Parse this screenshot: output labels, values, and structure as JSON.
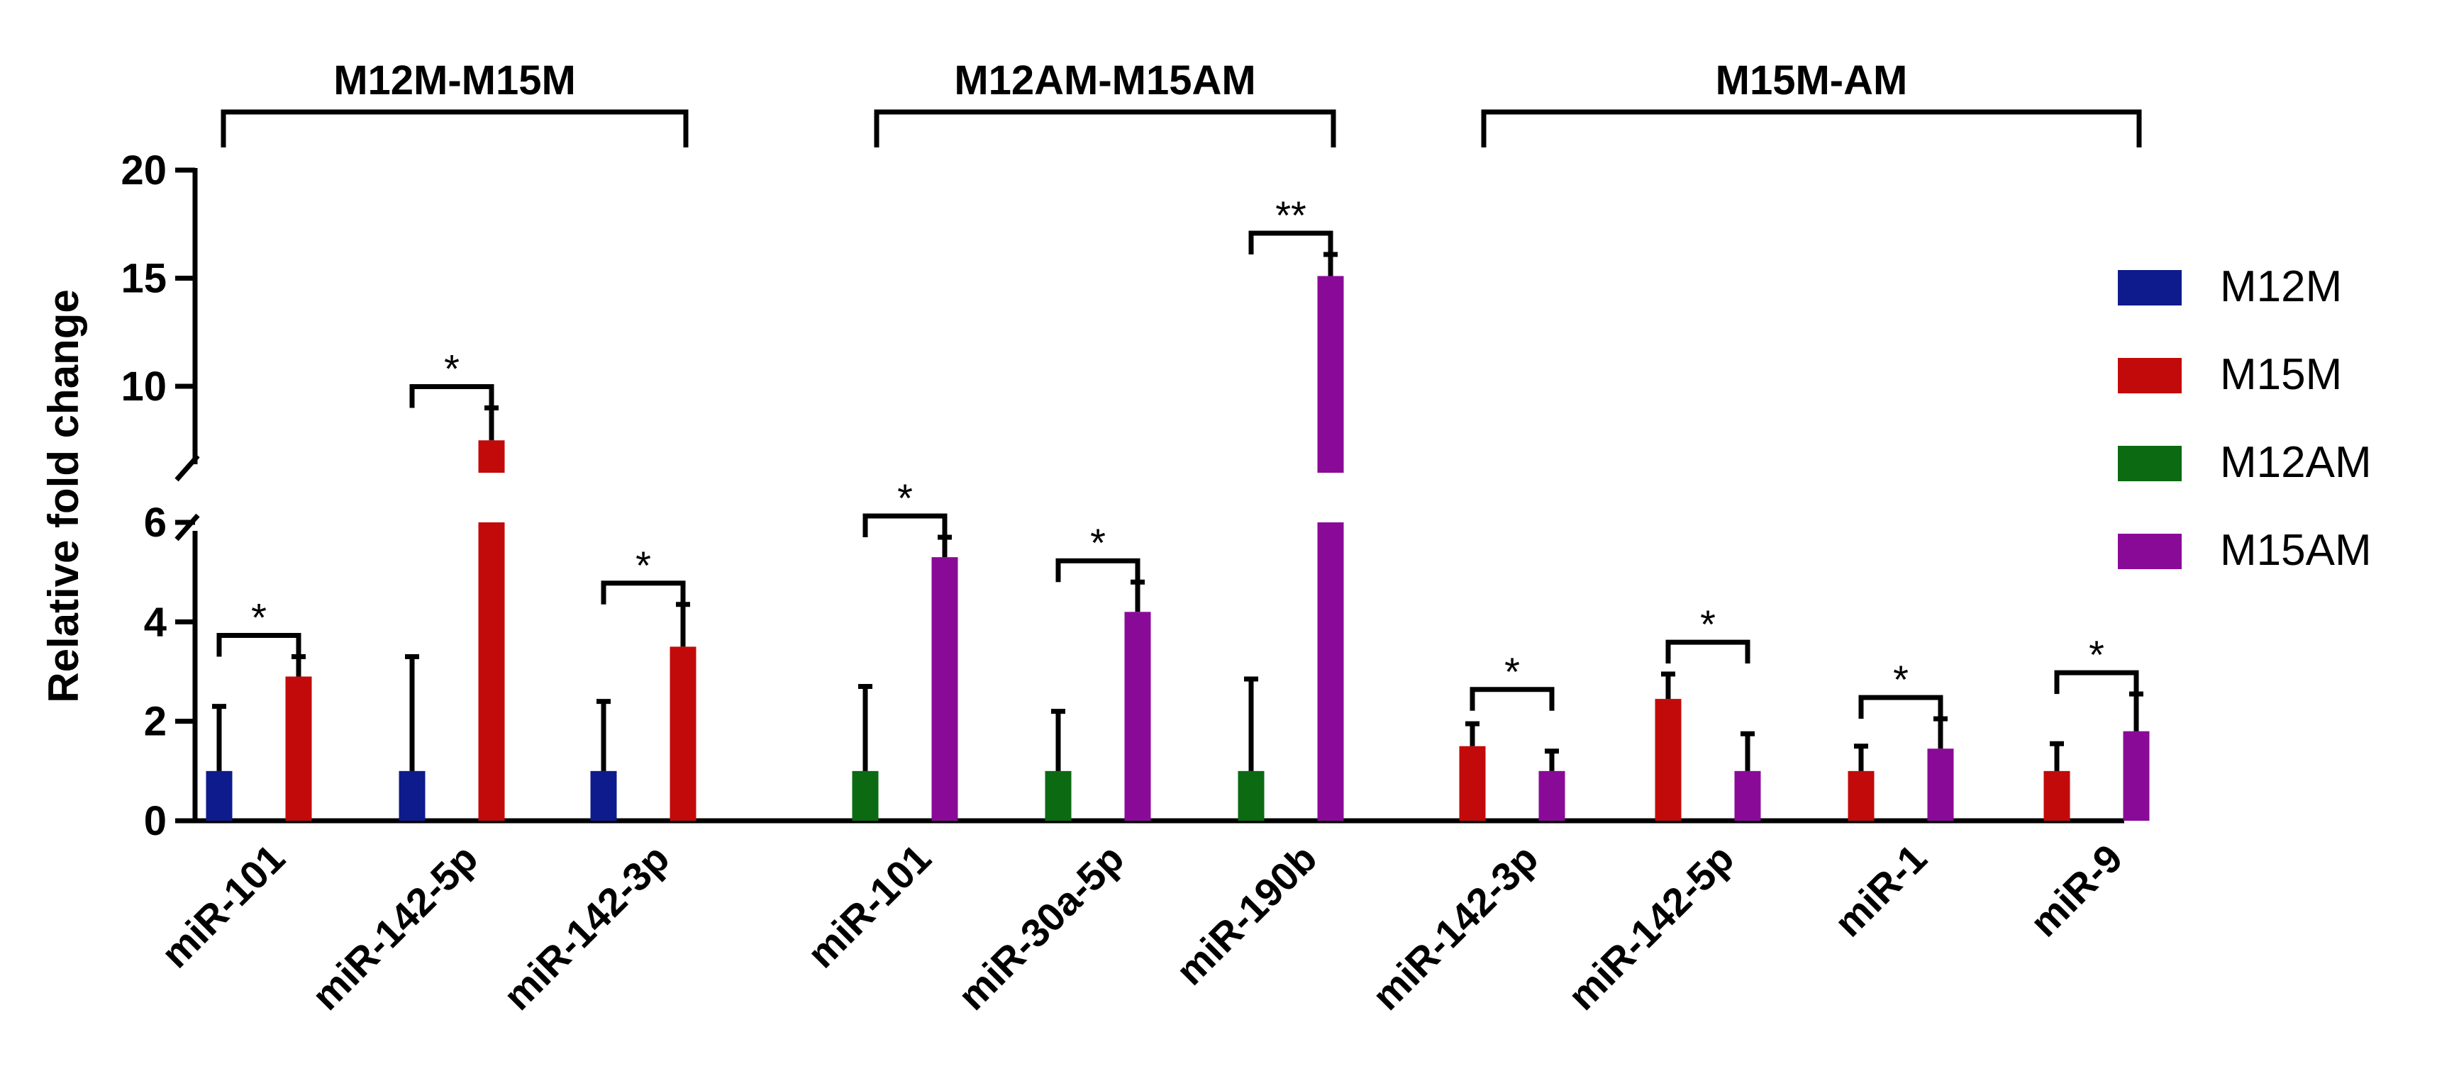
{
  "chart_data": {
    "type": "bar",
    "ylabel": "Relative fold change",
    "y_axis": {
      "lower_segment": {
        "range": [
          0,
          6
        ],
        "ticks": [
          0,
          2,
          4,
          6
        ]
      },
      "upper_segment": {
        "range": [
          6,
          20
        ],
        "ticks": [
          10,
          15,
          20
        ]
      },
      "break": true
    },
    "series_legend": [
      {
        "name": "M12M",
        "color": "#0d1b8c"
      },
      {
        "name": "M15M",
        "color": "#c30a0a"
      },
      {
        "name": "M12AM",
        "color": "#0b6a12"
      },
      {
        "name": "M15AM",
        "color": "#8a0a98"
      }
    ],
    "group_brackets": [
      {
        "label": "M12M-M15M",
        "first": 0,
        "last": 2
      },
      {
        "label": "M12AM-M15AM",
        "first": 3,
        "last": 5
      },
      {
        "label": "M15M-AM",
        "first": 6,
        "last": 9
      }
    ],
    "categories": [
      {
        "label": "miR-101",
        "bars": [
          {
            "series": "M12M",
            "value": 1.0,
            "err": 1.3
          },
          {
            "series": "M15M",
            "value": 2.9,
            "err": 0.4
          }
        ],
        "sig": "*"
      },
      {
        "label": "miR-142-5p",
        "bars": [
          {
            "series": "M12M",
            "value": 1.0,
            "err": 2.3
          },
          {
            "series": "M15M",
            "value": 7.5,
            "err": 1.5
          }
        ],
        "sig": "*"
      },
      {
        "label": "miR-142-3p",
        "bars": [
          {
            "series": "M12M",
            "value": 1.0,
            "err": 1.4
          },
          {
            "series": "M15M",
            "value": 3.5,
            "err": 0.85
          }
        ],
        "sig": "*"
      },
      {
        "label": "miR-101",
        "bars": [
          {
            "series": "M12AM",
            "value": 1.0,
            "err": 1.7
          },
          {
            "series": "M15AM",
            "value": 5.3,
            "err": 0.4
          }
        ],
        "sig": "*"
      },
      {
        "label": "miR-30a-5p",
        "bars": [
          {
            "series": "M12AM",
            "value": 1.0,
            "err": 1.2
          },
          {
            "series": "M15AM",
            "value": 4.2,
            "err": 0.6
          }
        ],
        "sig": "*"
      },
      {
        "label": "miR-190b",
        "bars": [
          {
            "series": "M12AM",
            "value": 1.0,
            "err": 1.85
          },
          {
            "series": "M15AM",
            "value": 15.1,
            "err": 1.0
          }
        ],
        "sig": "**"
      },
      {
        "label": "miR-142-3p",
        "bars": [
          {
            "series": "M15M",
            "value": 1.5,
            "err": 0.45
          },
          {
            "series": "M15AM",
            "value": 1.0,
            "err": 0.4
          }
        ],
        "sig": "*"
      },
      {
        "label": "miR-142-5p",
        "bars": [
          {
            "series": "M15M",
            "value": 2.45,
            "err": 0.5
          },
          {
            "series": "M15AM",
            "value": 1.0,
            "err": 0.75
          }
        ],
        "sig": "*"
      },
      {
        "label": "miR-1",
        "bars": [
          {
            "series": "M15M",
            "value": 1.0,
            "err": 0.5
          },
          {
            "series": "M15AM",
            "value": 1.45,
            "err": 0.6
          }
        ],
        "sig": "*"
      },
      {
        "label": "miR-9",
        "bars": [
          {
            "series": "M15M",
            "value": 1.0,
            "err": 0.55
          },
          {
            "series": "M15AM",
            "value": 1.8,
            "err": 0.75
          }
        ],
        "sig": "*"
      }
    ]
  }
}
